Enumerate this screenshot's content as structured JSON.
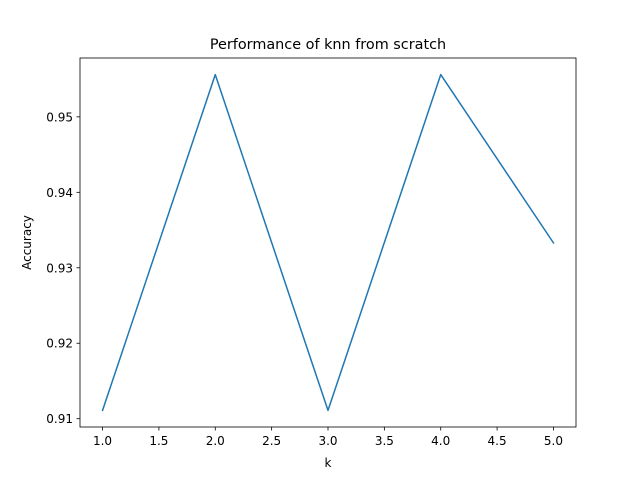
{
  "chart_data": {
    "type": "line",
    "title": "Performance of knn  from scratch",
    "xlabel": "k",
    "ylabel": "Accuracy",
    "x": [
      1.0,
      2.0,
      3.0,
      4.0,
      5.0
    ],
    "series": [
      {
        "values": [
          0.9111,
          0.9556,
          0.9111,
          0.9556,
          0.9333
        ],
        "color": "#1f77b4"
      }
    ],
    "xticks": [
      "1.0",
      "1.5",
      "2.0",
      "2.5",
      "3.0",
      "3.5",
      "4.0",
      "4.5",
      "5.0"
    ],
    "xtick_values": [
      1.0,
      1.5,
      2.0,
      2.5,
      3.0,
      3.5,
      4.0,
      4.5,
      5.0
    ],
    "yticks": [
      "0.91",
      "0.92",
      "0.93",
      "0.94",
      "0.95"
    ],
    "ytick_values": [
      0.91,
      0.92,
      0.93,
      0.94,
      0.95
    ],
    "xlim": [
      0.8,
      5.2
    ],
    "ylim": [
      0.9089,
      0.9578
    ],
    "grid": false,
    "legend": "none"
  }
}
